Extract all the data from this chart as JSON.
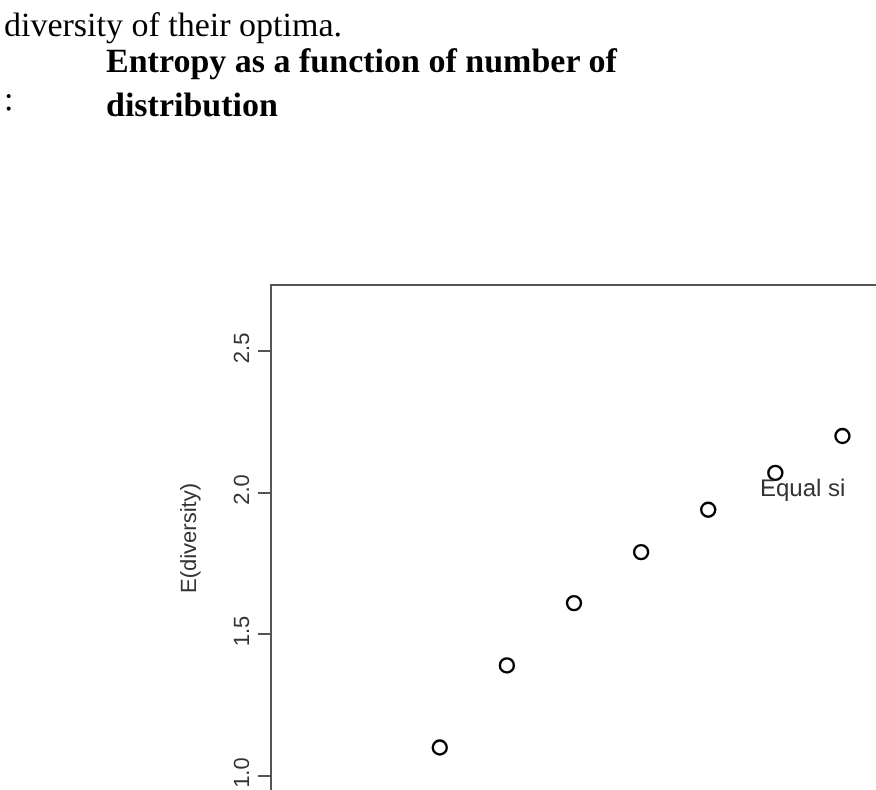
{
  "chart_data": {
    "type": "scatter",
    "title": "Entropy as a function of number of\ndistribution",
    "ylabel": "E(diversity)",
    "annotations": [
      "diversity of their optima.",
      ":",
      "Equal si"
    ],
    "categories": [
      null,
      null,
      null,
      null,
      null,
      null,
      null,
      null,
      null
    ],
    "series": [
      {
        "color": "#000000",
        "values": [
          null,
          null,
          1.1,
          1.39,
          1.61,
          1.79,
          1.94,
          2.07,
          2.2
        ]
      }
    ],
    "marker": "circle",
    "ylim": [
      0.95,
      2.73
    ],
    "yticks": [
      {
        "value": 1,
        "label": "1.0"
      },
      1.5,
      {
        "value": 2,
        "label": "2.0"
      },
      2.5
    ],
    "tick_labels": "y"
  }
}
